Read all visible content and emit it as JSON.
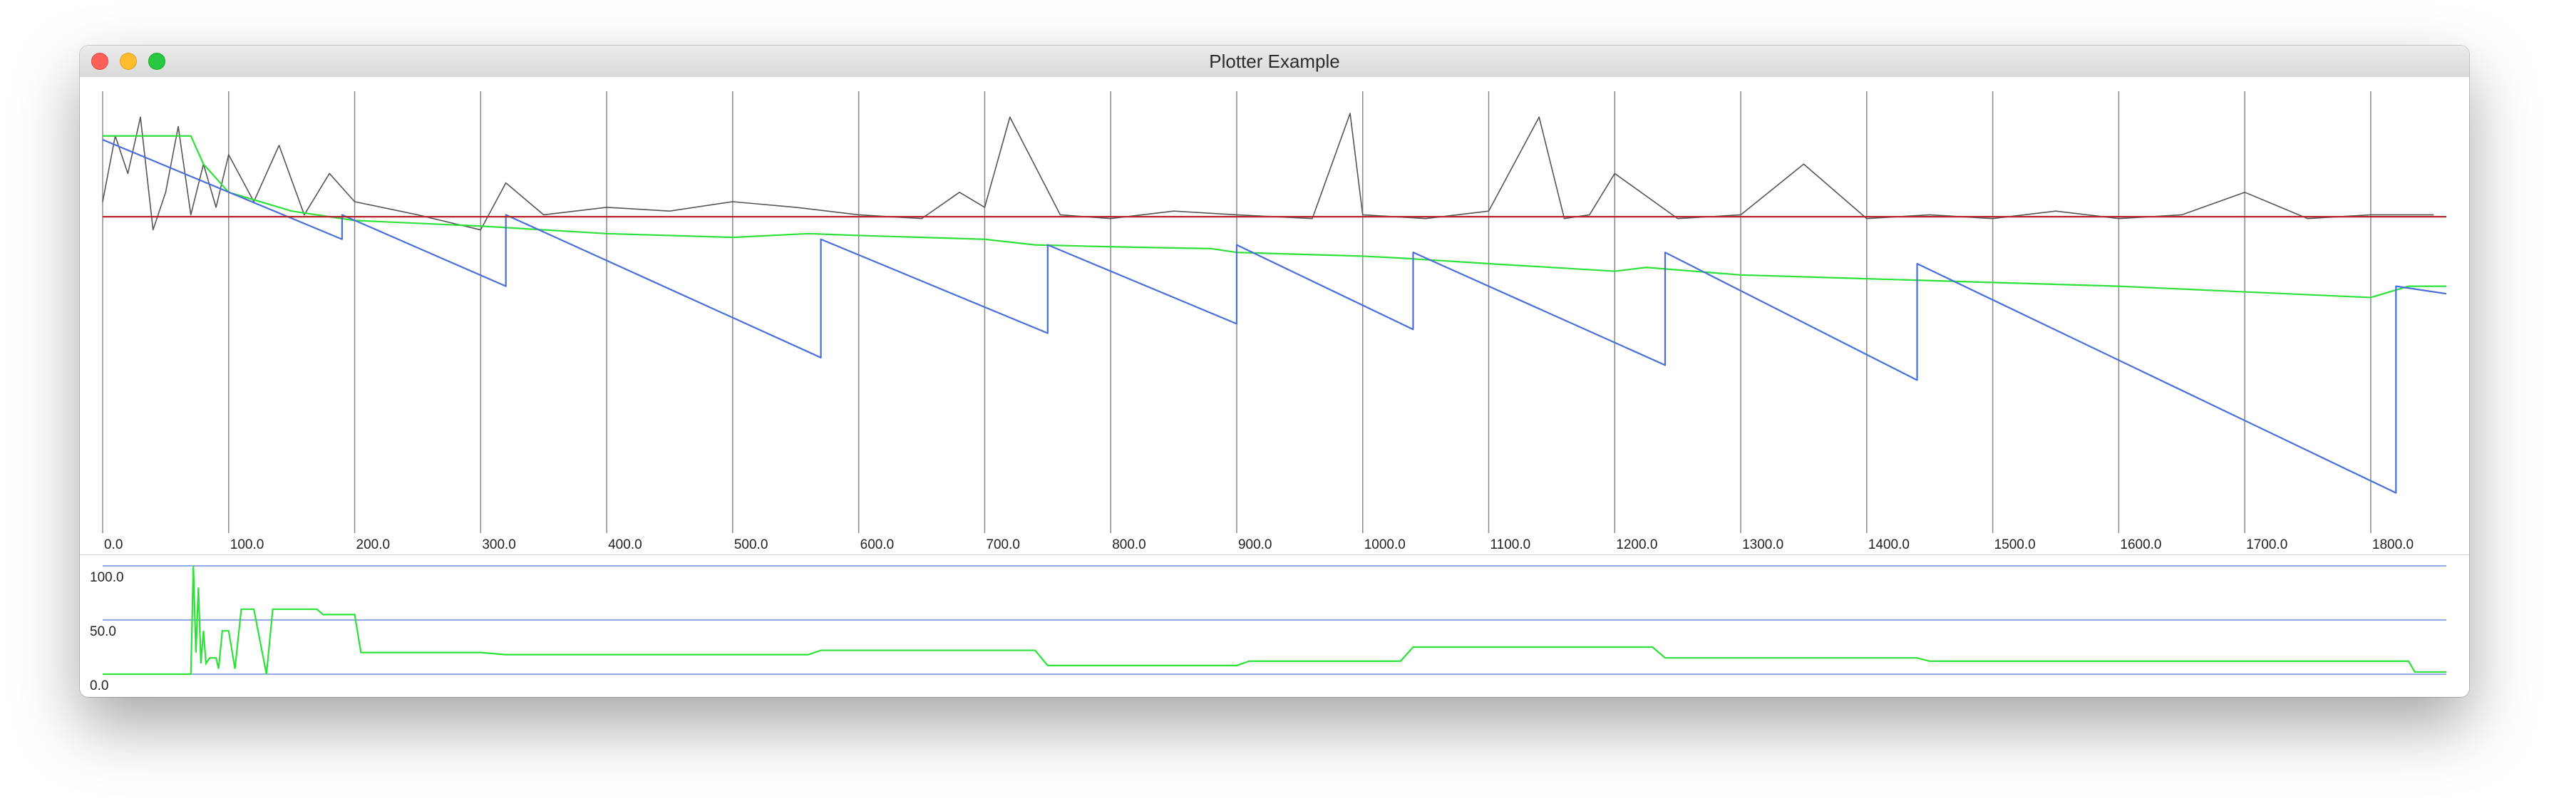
{
  "window": {
    "title": "Plotter Example"
  },
  "colors": {
    "gray_series": "#555555",
    "green_series": "#2ee03a",
    "blue_series": "#4a6fd8",
    "red_line": "#b3262a",
    "grid": "#8a8a8a",
    "lower_grid": "#6f8fe0"
  },
  "chart_data": [
    {
      "type": "line",
      "title": "",
      "xlabel": "",
      "ylabel": "",
      "xlim": [
        0,
        1860
      ],
      "grid": "vertical",
      "x_tick_labels": [
        "0.0",
        "100.0",
        "200.0",
        "300.0",
        "400.0",
        "500.0",
        "600.0",
        "700.0",
        "800.0",
        "900.0",
        "1000.0",
        "1100.0",
        "1200.0",
        "1300.0",
        "1400.0",
        "1500.0",
        "1600.0",
        "1700.0",
        "1800.0"
      ],
      "series": [
        {
          "color": "#555555",
          "style": "noisy signal",
          "x": [
            0,
            10,
            20,
            30,
            40,
            50,
            60,
            70,
            80,
            90,
            100,
            120,
            140,
            160,
            180,
            200,
            250,
            300,
            320,
            350,
            400,
            450,
            500,
            550,
            600,
            650,
            680,
            700,
            720,
            760,
            800,
            850,
            900,
            960,
            990,
            1000,
            1050,
            1100,
            1140,
            1160,
            1180,
            1200,
            1250,
            1300,
            1350,
            1400,
            1450,
            1500,
            1550,
            1600,
            1650,
            1700,
            1750,
            1800,
            1850
          ],
          "y": [
            55,
            20,
            40,
            10,
            70,
            50,
            15,
            62,
            35,
            58,
            30,
            55,
            25,
            62,
            40,
            55,
            62,
            70,
            45,
            62,
            58,
            60,
            55,
            58,
            62,
            64,
            50,
            58,
            10,
            62,
            64,
            60,
            62,
            64,
            8,
            62,
            64,
            60,
            10,
            64,
            62,
            40,
            64,
            62,
            35,
            64,
            62,
            64,
            60,
            64,
            62,
            50,
            64,
            62,
            62
          ]
        },
        {
          "color": "#2ee03a",
          "style": "step",
          "x": [
            0,
            70,
            80,
            100,
            150,
            200,
            300,
            400,
            500,
            560,
            600,
            700,
            740,
            800,
            880,
            900,
            1000,
            1030,
            1100,
            1200,
            1225,
            1300,
            1400,
            1500,
            1600,
            1700,
            1800,
            1830,
            1860
          ],
          "y": [
            20,
            20,
            35,
            50,
            60,
            65,
            68,
            72,
            74,
            72,
            73,
            75,
            78,
            79,
            80,
            82,
            84,
            85,
            88,
            92,
            90,
            94,
            96,
            98,
            100,
            103,
            106,
            100,
            100
          ]
        },
        {
          "color": "#4a6fd8",
          "style": "sawtooth",
          "x": [
            0,
            190,
            190,
            320,
            320,
            570,
            570,
            750,
            750,
            900,
            900,
            1040,
            1040,
            1240,
            1240,
            1440,
            1440,
            1820,
            1820,
            1860
          ],
          "y": [
            22,
            75,
            62,
            100,
            62,
            138,
            75,
            125,
            78,
            120,
            78,
            123,
            82,
            142,
            82,
            150,
            88,
            210,
            100,
            104
          ]
        },
        {
          "color": "#b3262a",
          "style": "horizontal",
          "x": [
            0,
            1860
          ],
          "y": [
            63,
            63
          ]
        }
      ]
    },
    {
      "type": "line",
      "title": "",
      "xlabel": "",
      "ylabel": "",
      "ylim": [
        0,
        100
      ],
      "xlim": [
        0,
        1860
      ],
      "grid": "horizontal",
      "y_tick_labels": [
        "100.0",
        "50.0",
        "0.0"
      ],
      "series": [
        {
          "color": "#2ee03a",
          "style": "step",
          "x": [
            0,
            70,
            72,
            74,
            76,
            78,
            80,
            82,
            85,
            90,
            92,
            95,
            100,
            105,
            110,
            115,
            120,
            130,
            135,
            140,
            170,
            175,
            180,
            200,
            205,
            300,
            320,
            560,
            570,
            740,
            750,
            900,
            910,
            1030,
            1040,
            1230,
            1240,
            1440,
            1450,
            1830,
            1835,
            1860
          ],
          "y": [
            0,
            0,
            100,
            20,
            80,
            10,
            40,
            10,
            15,
            15,
            5,
            40,
            40,
            5,
            60,
            60,
            60,
            0,
            60,
            60,
            60,
            55,
            55,
            55,
            20,
            20,
            18,
            18,
            22,
            22,
            8,
            8,
            12,
            12,
            25,
            25,
            15,
            15,
            12,
            12,
            2,
            2
          ]
        }
      ]
    }
  ]
}
